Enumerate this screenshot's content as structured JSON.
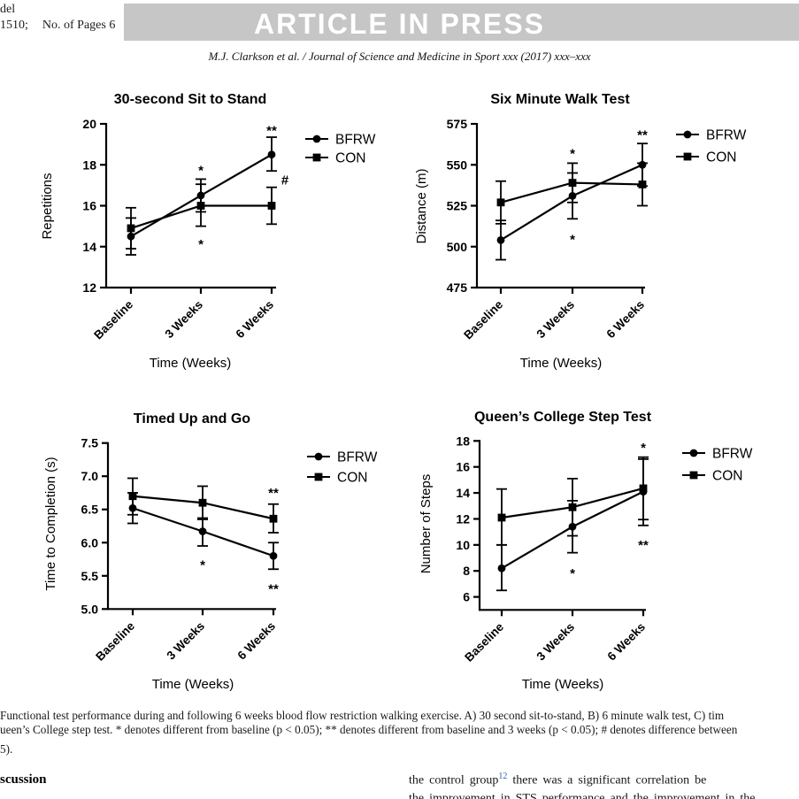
{
  "header": {
    "gmodel_line1": "del",
    "gmodel_code": "1510;",
    "gmodel_pages": "No. of Pages 6",
    "banner": "ARTICLE IN PRESS",
    "banner_bg": "#c6c6c6",
    "citation": "M.J. Clarkson et al. / Journal of Science and Medicine in Sport xxx (2017) xxx–xxx"
  },
  "figure": {
    "caption_line1": "Functional test performance during and following 6 weeks blood flow restriction walking exercise. A) 30 second sit-to-stand, B) 6 minute walk test, C) tim",
    "caption_line2": "ueen’s College step test. * denotes different from baseline (p < 0.05); ** denotes different from baseline and 3 weeks (p < 0.05); # denotes difference between",
    "caption_line3": "5)."
  },
  "body": {
    "left_heading": "scussion",
    "right_line1_pre": "the control group",
    "right_line1_sup": "12",
    "right_line1_post": " there was a significant correlation be",
    "right_line2_partial": "the improvement in STS performance and the improvement in the",
    "sup_color": "#2e5fa8"
  },
  "chart_data": [
    {
      "type": "line",
      "title": "30-second Sit to Stand",
      "x_axis_label": "Time (Weeks)",
      "y_axis_label": "Repetitions",
      "categories": [
        "Baseline",
        "3 Weeks",
        "6 Weeks"
      ],
      "ylim": [
        12,
        20
      ],
      "yticks": [
        12,
        14,
        16,
        18,
        20
      ],
      "ytick_labels": [
        "12",
        "14",
        "16",
        "18",
        "20"
      ],
      "legend_position": "right",
      "grid": false,
      "series": [
        {
          "name": "BFRW",
          "marker": "circle",
          "values": [
            14.5,
            16.5,
            18.5
          ],
          "err_minus": [
            0.9,
            0.8,
            0.8
          ],
          "err_plus": [
            0.9,
            0.8,
            0.85
          ]
        },
        {
          "name": "CON",
          "marker": "square",
          "values": [
            14.9,
            16.0,
            16.0
          ],
          "err_minus": [
            1.0,
            1.0,
            0.9
          ],
          "err_plus": [
            1.0,
            1.05,
            0.9
          ]
        }
      ],
      "annotations": [
        {
          "text": "*",
          "cat": 1,
          "value": 17.9
        },
        {
          "text": "*",
          "cat": 1,
          "value": 14.3
        },
        {
          "text": "**",
          "cat": 2,
          "value": 19.85
        },
        {
          "text": "#",
          "cat": 2,
          "value": 17.25,
          "dx": 15
        }
      ]
    },
    {
      "type": "line",
      "title": "Six Minute Walk Test",
      "x_axis_label": "Time (Weeks)",
      "y_axis_label": "Distance (m)",
      "categories": [
        "Baseline",
        "3 Weeks",
        "6 Weeks"
      ],
      "ylim": [
        475,
        575
      ],
      "yticks": [
        475,
        500,
        525,
        550,
        575
      ],
      "ytick_labels": [
        "475",
        "500",
        "525",
        "550",
        "575"
      ],
      "legend_position": "right",
      "grid": false,
      "series": [
        {
          "name": "BFRW",
          "marker": "circle",
          "values": [
            504,
            531,
            550
          ],
          "err_minus": [
            12,
            14,
            13
          ],
          "err_plus": [
            12,
            14,
            13
          ]
        },
        {
          "name": "CON",
          "marker": "square",
          "values": [
            527,
            539,
            538
          ],
          "err_minus": [
            13,
            12,
            13
          ],
          "err_plus": [
            13,
            12,
            13
          ]
        }
      ],
      "annotations": [
        {
          "text": "*",
          "cat": 1,
          "value": 559
        },
        {
          "text": "*",
          "cat": 1,
          "value": 506.5
        },
        {
          "text": "**",
          "cat": 2,
          "value": 570.5
        }
      ]
    },
    {
      "type": "line",
      "title": "Timed Up and Go",
      "x_axis_label": "Time (Weeks)",
      "y_axis_label": "Time to Completion (s)",
      "categories": [
        "Baseline",
        "3 Weeks",
        "6 Weeks"
      ],
      "ylim": [
        5,
        7.5
      ],
      "yticks": [
        5,
        5.5,
        6,
        6.5,
        7,
        7.5
      ],
      "ytick_labels": [
        "5.0",
        "5.5",
        "6.0",
        "6.5",
        "7.0",
        "7.5"
      ],
      "legend_position": "right",
      "grid": false,
      "series": [
        {
          "name": "BFRW",
          "marker": "circle",
          "values": [
            6.52,
            6.17,
            5.8
          ],
          "err_minus": [
            0.23,
            0.22,
            0.2
          ],
          "err_plus": [
            0.23,
            0.2,
            0.2
          ]
        },
        {
          "name": "CON",
          "marker": "square",
          "values": [
            6.7,
            6.6,
            6.36
          ],
          "err_minus": [
            0.28,
            0.25,
            0.21
          ],
          "err_plus": [
            0.27,
            0.25,
            0.22
          ]
        }
      ],
      "annotations": [
        {
          "text": "*",
          "cat": 1,
          "value": 5.72
        },
        {
          "text": "**",
          "cat": 2,
          "value": 6.8
        },
        {
          "text": "**",
          "cat": 2,
          "value": 5.36
        }
      ]
    },
    {
      "type": "line",
      "title": "Queen’s College Step Test",
      "x_axis_label": "Time (Weeks)",
      "y_axis_label": "Number of Steps",
      "categories": [
        "Baseline",
        "3 Weeks",
        "6 Weeks"
      ],
      "ylim": [
        5,
        18
      ],
      "yticks": [
        6,
        8,
        10,
        12,
        14,
        16,
        18
      ],
      "ytick_labels": [
        "6",
        "8",
        "10",
        "12",
        "14",
        "16",
        "18"
      ],
      "legend_position": "right",
      "grid": false,
      "series": [
        {
          "name": "BFRW",
          "marker": "circle",
          "values": [
            8.2,
            11.4,
            14.1
          ],
          "err_minus": [
            1.7,
            2.0,
            2.6
          ],
          "err_plus": [
            1.8,
            2.0,
            2.5
          ]
        },
        {
          "name": "CON",
          "marker": "square",
          "values": [
            12.1,
            12.9,
            14.35
          ],
          "err_minus": [
            2.1,
            2.2,
            2.4
          ],
          "err_plus": [
            2.2,
            2.2,
            2.4
          ]
        }
      ],
      "annotations": [
        {
          "text": "*",
          "cat": 1,
          "value": 8.1
        },
        {
          "text": "*",
          "cat": 2,
          "value": 17.75
        },
        {
          "text": "**",
          "cat": 2,
          "value": 10.25
        }
      ]
    }
  ]
}
